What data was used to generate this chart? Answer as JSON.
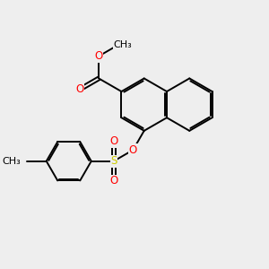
{
  "bg_color": "#eeeeee",
  "bond_color": "#000000",
  "bond_width": 1.4,
  "atom_colors": {
    "O": "#ff0000",
    "S": "#cccc00",
    "C": "#000000"
  },
  "font_size": 8.5,
  "fig_size": [
    3.0,
    3.0
  ],
  "dpi": 100
}
